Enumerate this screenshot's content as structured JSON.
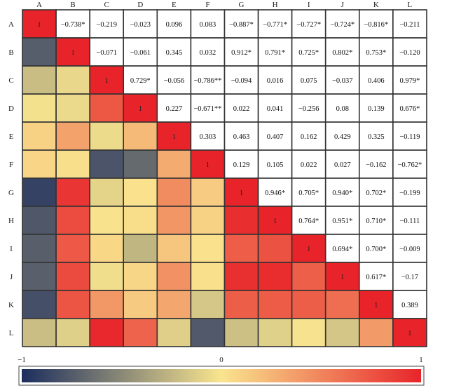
{
  "chart_data": {
    "type": "heatmap",
    "title": "",
    "variables": [
      "A",
      "B",
      "C",
      "D",
      "E",
      "F",
      "G",
      "H",
      "I",
      "J",
      "K",
      "L"
    ],
    "matrix": [
      [
        1,
        -0.738,
        -0.219,
        -0.023,
        0.096,
        0.083,
        -0.887,
        -0.771,
        -0.727,
        -0.724,
        -0.816,
        -0.211
      ],
      [
        -0.738,
        1,
        -0.071,
        -0.061,
        0.345,
        0.032,
        0.912,
        0.791,
        0.725,
        0.802,
        0.753,
        -0.12
      ],
      [
        -0.219,
        -0.071,
        1,
        0.729,
        -0.056,
        -0.786,
        -0.094,
        0.016,
        0.075,
        -0.037,
        0.406,
        0.979
      ],
      [
        -0.023,
        -0.061,
        0.729,
        1,
        0.227,
        -0.671,
        0.022,
        0.041,
        -0.256,
        0.08,
        0.139,
        0.676
      ],
      [
        0.096,
        0.345,
        -0.056,
        0.227,
        1,
        0.303,
        0.463,
        0.407,
        0.162,
        0.429,
        0.325,
        -0.119
      ],
      [
        0.083,
        0.032,
        -0.786,
        -0.671,
        0.303,
        1,
        0.129,
        0.105,
        0.022,
        0.027,
        -0.162,
        -0.762
      ],
      [
        -0.887,
        0.912,
        -0.094,
        0.022,
        0.463,
        0.129,
        1,
        0.946,
        0.705,
        0.94,
        0.702,
        -0.199
      ],
      [
        -0.771,
        0.791,
        0.016,
        0.041,
        0.407,
        0.105,
        0.946,
        1,
        0.764,
        0.951,
        0.71,
        -0.111
      ],
      [
        -0.727,
        0.725,
        0.075,
        -0.256,
        0.162,
        0.022,
        0.705,
        0.764,
        1,
        0.694,
        0.7,
        -0.009
      ],
      [
        -0.724,
        0.802,
        -0.037,
        0.08,
        0.429,
        0.027,
        0.94,
        0.951,
        0.694,
        1,
        0.617,
        -0.17
      ],
      [
        -0.816,
        0.753,
        0.406,
        0.139,
        0.325,
        -0.162,
        0.702,
        0.71,
        0.7,
        0.617,
        1,
        0.389
      ],
      [
        -0.211,
        -0.12,
        0.979,
        0.676,
        -0.119,
        -0.762,
        -0.199,
        -0.111,
        -0.009,
        -0.17,
        0.389,
        1
      ]
    ],
    "upper_labels": [
      [
        "1",
        "−0.738*",
        "−0.219",
        "−0.023",
        "0.096",
        "0.083",
        "−0.887*",
        "−0.771*",
        "−0.727*",
        "−0.724*",
        "−0.816*",
        "−0.211"
      ],
      [
        "",
        "1",
        "−0.071",
        "−0.061",
        "0.345",
        "0.032",
        "0.912*",
        "0.791*",
        "0.725*",
        "0.802*",
        "0.753*",
        "−0.120"
      ],
      [
        "",
        "",
        "1",
        "0.729*",
        "−0.056",
        "−0.786**",
        "−0.094",
        "0.016",
        "0.075",
        "−0.037",
        "0.406",
        "0.979*"
      ],
      [
        "",
        "",
        "",
        "1",
        "0.227",
        "−0.671**",
        "0.022",
        "0.041",
        "−0.256",
        "0.08",
        "0.139",
        "0.676*"
      ],
      [
        "",
        "",
        "",
        "",
        "1",
        "0.303",
        "0.463",
        "0.407",
        "0.162",
        "0.429",
        "0.325",
        "−0.119"
      ],
      [
        "",
        "",
        "",
        "",
        "",
        "1",
        "0.129",
        "0.105",
        "0.022",
        "0.027",
        "−0.162",
        "−0.762*"
      ],
      [
        "",
        "",
        "",
        "",
        "",
        "",
        "1",
        "0.946*",
        "0.705*",
        "0.940*",
        "0.702*",
        "−0.199"
      ],
      [
        "",
        "",
        "",
        "",
        "",
        "",
        "",
        "1",
        "0.764*",
        "0.951*",
        "0.710*",
        "−0.111"
      ],
      [
        "",
        "",
        "",
        "",
        "",
        "",
        "",
        "",
        "1",
        "0.694*",
        "0.700*",
        "−0.009"
      ],
      [
        "",
        "",
        "",
        "",
        "",
        "",
        "",
        "",
        "",
        "1",
        "0.617*",
        "−0.17"
      ],
      [
        "",
        "",
        "",
        "",
        "",
        "",
        "",
        "",
        "",
        "",
        "1",
        "0.389"
      ],
      [
        "",
        "",
        "",
        "",
        "",
        "",
        "",
        "",
        "",
        "",
        "",
        "1"
      ]
    ],
    "lower_triangle": "colored",
    "upper_triangle": "values",
    "colorscale": {
      "min": -1,
      "max": 1,
      "tick_labels": [
        "−1",
        "0",
        "1"
      ],
      "colors": [
        "#1c2d5e",
        "#f9e58f",
        "#e8242a"
      ]
    },
    "grid": true,
    "legend": "bottom"
  }
}
